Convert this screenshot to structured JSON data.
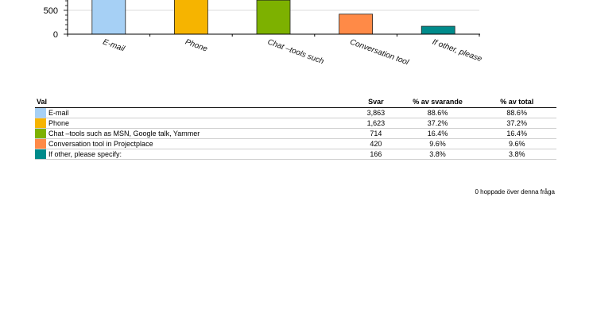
{
  "chart_data": {
    "type": "bar",
    "categories": [
      "E-mail",
      "Phone",
      "Chat –tools such",
      "Conversation tool",
      "If other, please"
    ],
    "values": [
      3863,
      1623,
      714,
      420,
      166
    ],
    "colors": [
      "#a6d0f5",
      "#f6b400",
      "#7db100",
      "#ff8a47",
      "#008b8b"
    ],
    "yticks": [
      0,
      500
    ],
    "grid": true
  },
  "table": {
    "headers": [
      "Val",
      "Svar",
      "% av svarande",
      "% av total"
    ],
    "rows": [
      {
        "label": "E-mail",
        "color": "#a6d0f5",
        "svar": "3,863",
        "pct_resp": "88.6%",
        "pct_total": "88.6%"
      },
      {
        "label": "Phone",
        "color": "#f6b400",
        "svar": "1,623",
        "pct_resp": "37.2%",
        "pct_total": "37.2%"
      },
      {
        "label": "Chat –tools such as MSN, Google talk, Yammer",
        "color": "#7db100",
        "svar": "714",
        "pct_resp": "16.4%",
        "pct_total": "16.4%"
      },
      {
        "label": "Conversation tool in Projectplace",
        "color": "#ff8a47",
        "svar": "420",
        "pct_resp": "9.6%",
        "pct_total": "9.6%"
      },
      {
        "label": "If other, please specify:",
        "color": "#008b8b",
        "svar": "166",
        "pct_resp": "3.8%",
        "pct_total": "3.8%"
      }
    ],
    "footer": "0 hoppade över denna fråga"
  }
}
